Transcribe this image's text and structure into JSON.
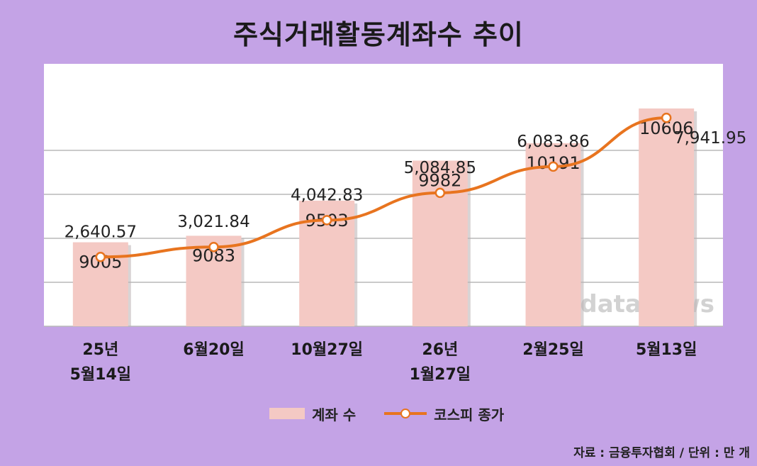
{
  "title": "주식거래활동계좌수 추이",
  "legend": {
    "bar_label": "계좌 수",
    "line_label": "코스피 종가"
  },
  "source": "자료 : 금융투자협회 / 단위 : 만 개",
  "watermark": "dataNews",
  "colors": {
    "background": "#c4a3e6",
    "plot": "#ffffff",
    "bar": "#f4c9c4",
    "line": "#e8741f",
    "grid": "#b8b8b8"
  },
  "chart_data": {
    "type": "bar",
    "categories": [
      [
        "25년",
        "5월14일"
      ],
      [
        "6월20일"
      ],
      [
        "10월27일"
      ],
      [
        "26년",
        "1월27일"
      ],
      [
        "2월25일"
      ],
      [
        "5월13일"
      ]
    ],
    "series": [
      {
        "name": "계좌 수",
        "type": "bar",
        "values": [
          9005,
          9083,
          9503,
          9982,
          10191,
          10606
        ],
        "labels": [
          "9005",
          "9083",
          "9503",
          "9982",
          "10191",
          "10606"
        ]
      },
      {
        "name": "코스피 종가",
        "type": "line",
        "values": [
          2640.57,
          3021.84,
          4042.83,
          5084.85,
          6083.86,
          7941.95
        ],
        "labels": [
          "2,640.57",
          "3,021.84",
          "4,042.83",
          "5,084.85",
          "6,083.86",
          "7,941.95"
        ]
      }
    ],
    "legend_position": "bottom",
    "grid": true
  }
}
